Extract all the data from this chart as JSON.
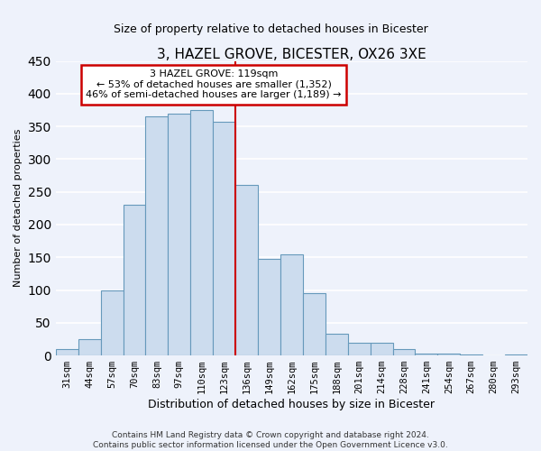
{
  "title": "3, HAZEL GROVE, BICESTER, OX26 3XE",
  "subtitle": "Size of property relative to detached houses in Bicester",
  "xlabel": "Distribution of detached houses by size in Bicester",
  "ylabel": "Number of detached properties",
  "bar_labels": [
    "31sqm",
    "44sqm",
    "57sqm",
    "70sqm",
    "83sqm",
    "97sqm",
    "110sqm",
    "123sqm",
    "136sqm",
    "149sqm",
    "162sqm",
    "175sqm",
    "188sqm",
    "201sqm",
    "214sqm",
    "228sqm",
    "241sqm",
    "254sqm",
    "267sqm",
    "280sqm",
    "293sqm"
  ],
  "bar_values": [
    10,
    25,
    100,
    230,
    365,
    370,
    375,
    357,
    260,
    147,
    155,
    95,
    33,
    20,
    20,
    10,
    3,
    3,
    2,
    0,
    2
  ],
  "bar_color": "#ccdcee",
  "bar_edge_color": "#6699bb",
  "vline_color": "#cc0000",
  "vline_index": 7.5,
  "ylim": [
    0,
    450
  ],
  "annotation_title": "3 HAZEL GROVE: 119sqm",
  "annotation_line1": "← 53% of detached houses are smaller (1,352)",
  "annotation_line2": "46% of semi-detached houses are larger (1,189) →",
  "annotation_border_color": "#cc0000",
  "footer_line1": "Contains HM Land Registry data © Crown copyright and database right 2024.",
  "footer_line2": "Contains public sector information licensed under the Open Government Licence v3.0.",
  "background_color": "#eef2fb",
  "grid_color": "#ffffff",
  "title_fontsize": 11,
  "subtitle_fontsize": 9,
  "xlabel_fontsize": 9,
  "ylabel_fontsize": 8
}
